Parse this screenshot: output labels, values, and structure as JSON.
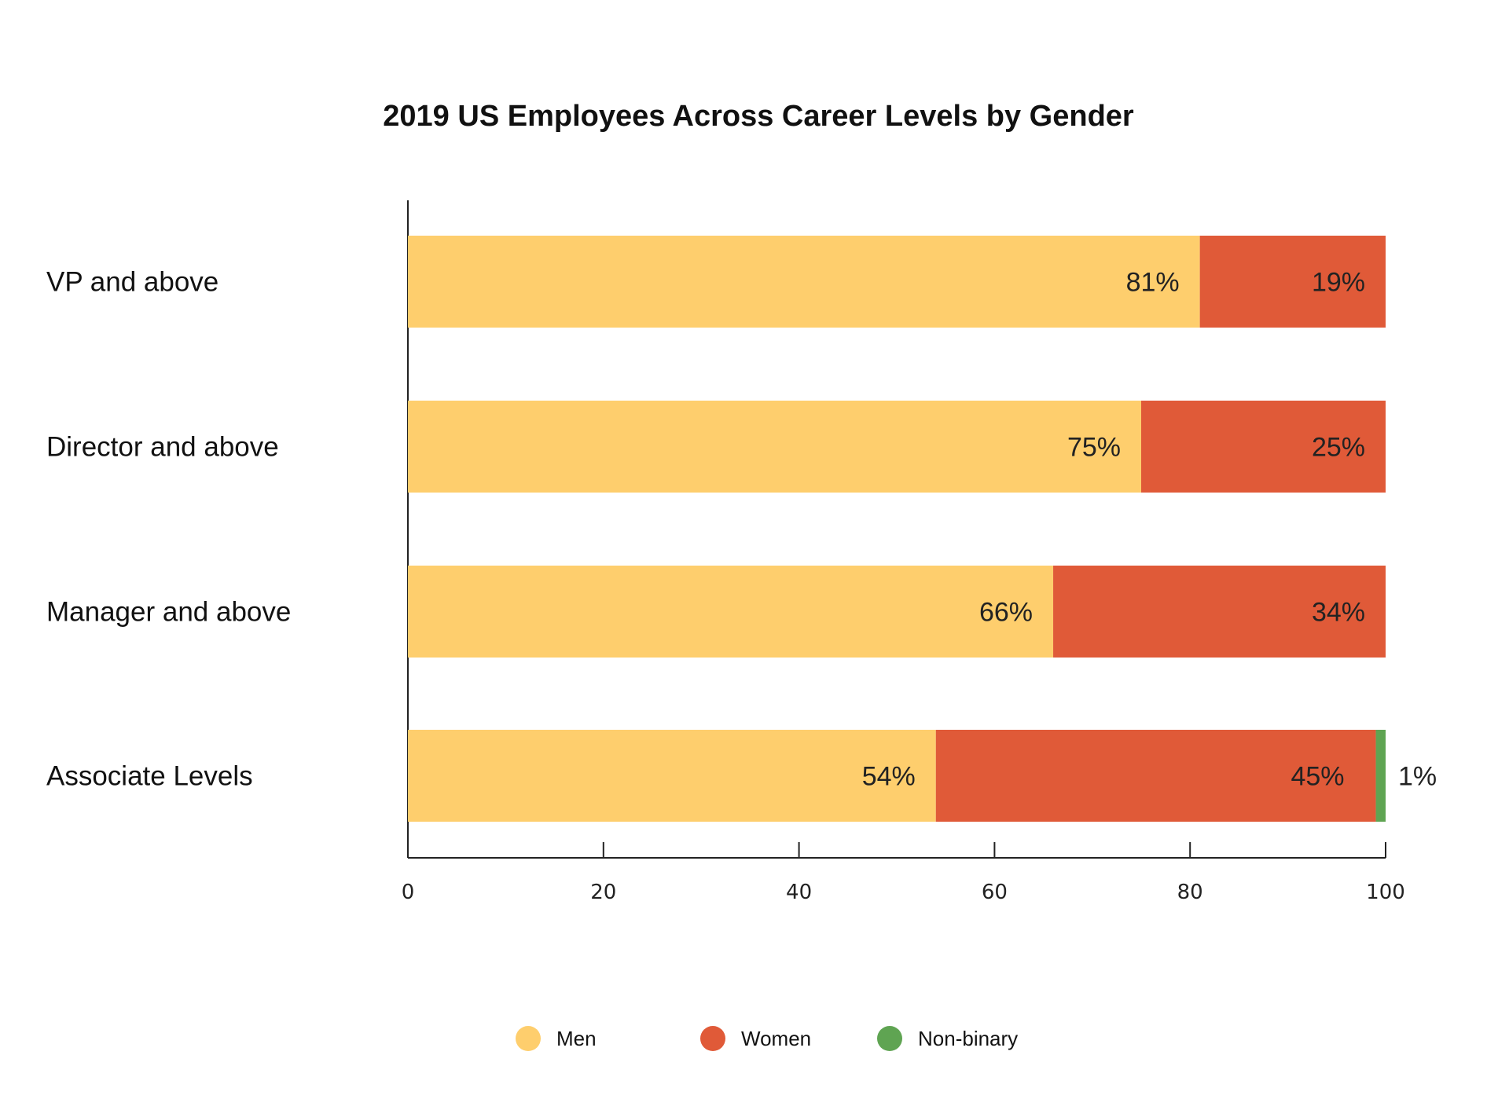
{
  "chart_data": {
    "type": "bar",
    "orientation": "horizontal",
    "stacked": true,
    "title": "2019 US Employees Across Career Levels by Gender",
    "categories": [
      "VP and above",
      "Director and above",
      "Manager and above",
      "Associate Levels"
    ],
    "series": [
      {
        "name": "Men",
        "values": [
          81,
          75,
          66,
          54
        ],
        "labels": [
          "81%",
          "75%",
          "66%",
          "54%"
        ],
        "color": "#FECE6D"
      },
      {
        "name": "Women",
        "values": [
          19,
          25,
          34,
          45
        ],
        "labels": [
          "19%",
          "25%",
          "34%",
          "45%"
        ],
        "color": "#E05A38"
      },
      {
        "name": "Non-binary",
        "values": [
          0,
          0,
          0,
          1
        ],
        "labels": [
          "",
          "",
          "",
          "1%"
        ],
        "color": "#5FA452"
      }
    ],
    "xlim": [
      0,
      100
    ],
    "xticks": [
      0,
      20,
      40,
      60,
      80,
      100
    ],
    "xtick_labels": [
      "0",
      "20",
      "40",
      "60",
      "80",
      "100"
    ],
    "grid": false,
    "legend_position": "bottom"
  }
}
